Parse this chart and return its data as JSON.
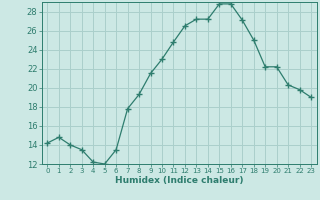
{
  "x": [
    0,
    1,
    2,
    3,
    4,
    5,
    6,
    7,
    8,
    9,
    10,
    11,
    12,
    13,
    14,
    15,
    16,
    17,
    18,
    19,
    20,
    21,
    22,
    23
  ],
  "y": [
    14.2,
    14.8,
    14.0,
    13.5,
    12.2,
    12.0,
    13.5,
    17.8,
    19.3,
    21.5,
    23.0,
    24.8,
    26.5,
    27.2,
    27.2,
    28.8,
    28.8,
    27.1,
    25.0,
    22.2,
    22.2,
    20.3,
    19.8,
    19.0
  ],
  "line_color": "#2e7d6e",
  "marker": "+",
  "marker_size": 4,
  "bg_color": "#cce8e4",
  "grid_color": "#aacfcb",
  "xlabel": "Humidex (Indice chaleur)",
  "xlim": [
    -0.5,
    23.5
  ],
  "ylim": [
    12,
    29
  ],
  "yticks": [
    12,
    14,
    16,
    18,
    20,
    22,
    24,
    26,
    28
  ],
  "xticks": [
    0,
    1,
    2,
    3,
    4,
    5,
    6,
    7,
    8,
    9,
    10,
    11,
    12,
    13,
    14,
    15,
    16,
    17,
    18,
    19,
    20,
    21,
    22,
    23
  ],
  "tick_color": "#2e7d6e",
  "axes_color": "#2e7d6e",
  "font_color": "#2e7d6e",
  "xlabel_fontsize": 6.5,
  "ytick_fontsize": 6,
  "xtick_fontsize": 5
}
